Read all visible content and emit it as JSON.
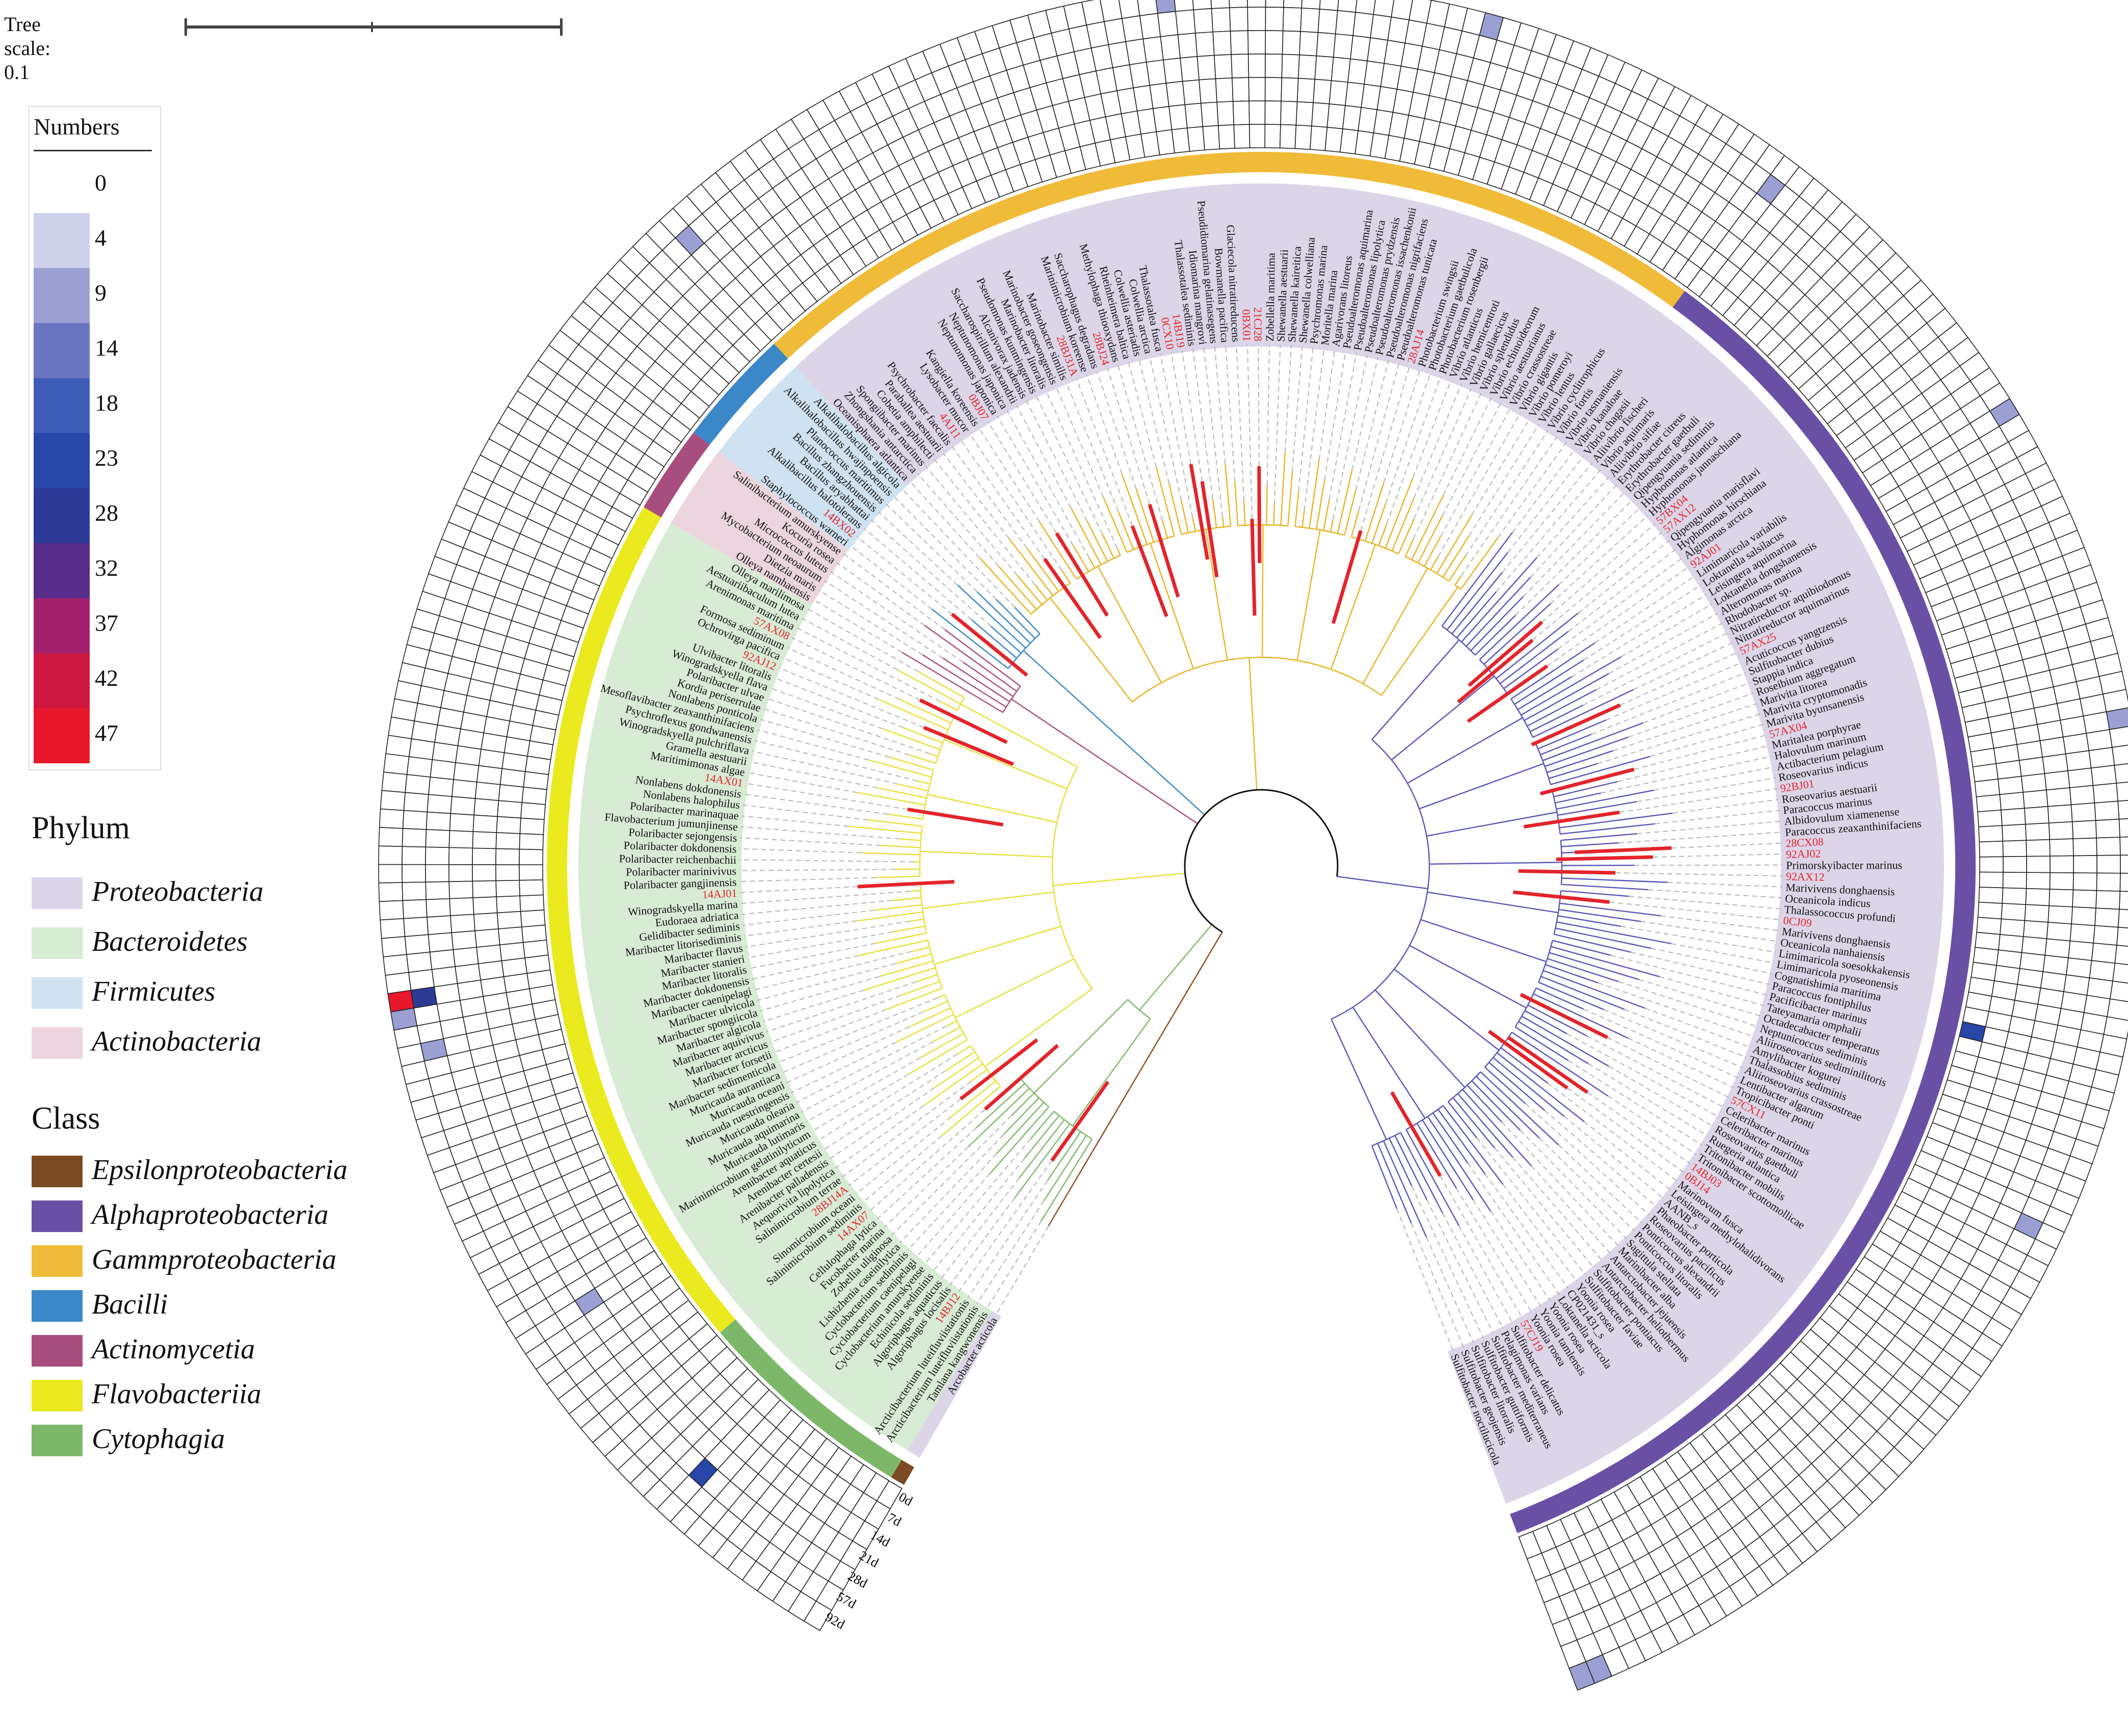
{
  "scale": {
    "label": "Tree scale: 0.1",
    "value": 0.1
  },
  "numbers_legend": {
    "title": "Numbers",
    "items": [
      {
        "label": "0",
        "color": "#ffffff"
      },
      {
        "label": "4",
        "color": "#cfd0ea"
      },
      {
        "label": "9",
        "color": "#9c9fd3"
      },
      {
        "label": "14",
        "color": "#6b76c2"
      },
      {
        "label": "18",
        "color": "#3f5cb6"
      },
      {
        "label": "23",
        "color": "#2746a8"
      },
      {
        "label": "28",
        "color": "#2d3a96"
      },
      {
        "label": "32",
        "color": "#572c8c"
      },
      {
        "label": "37",
        "color": "#a21f6c"
      },
      {
        "label": "42",
        "color": "#cc1840"
      },
      {
        "label": "47",
        "color": "#e8182a"
      }
    ]
  },
  "phylum_legend": {
    "title": "Phylum",
    "items": [
      {
        "label": "Proteobacteria",
        "color": "#dcd5e8"
      },
      {
        "label": "Bacteroidetes",
        "color": "#d8ebd5"
      },
      {
        "label": "Firmicutes",
        "color": "#cfe2f1"
      },
      {
        "label": "Actinobacteria",
        "color": "#ecd5de"
      }
    ]
  },
  "class_legend": {
    "title": "Class",
    "items": [
      {
        "label": "Epsilonproteobacteria",
        "color": "#7b4a22"
      },
      {
        "label": "Alphaproteobacteria",
        "color": "#6a50a4"
      },
      {
        "label": "Gammproteobacteria",
        "color": "#f0bb38"
      },
      {
        "label": "Bacilli",
        "color": "#3b87c8"
      },
      {
        "label": "Actinomycetia",
        "color": "#a84e7e"
      },
      {
        "label": "Flavobacteriia",
        "color": "#eaea1f"
      },
      {
        "label": "Cytophagia",
        "color": "#7db86a"
      }
    ]
  },
  "ring_labels": [
    "92d",
    "57d",
    "28d",
    "21d",
    "14d",
    "7d",
    "0d"
  ],
  "groups": [
    {
      "class": "Epsilonproteobacteria",
      "phylum": "Proteobacteria",
      "taxa": [
        "Arcobacter acticola"
      ]
    },
    {
      "class": "Cytophagia",
      "phylum": "Bacteroidetes",
      "taxa": [
        "Tamlana kangwonensis",
        "Arcticibacterium luteifluviistationis",
        "Arcticibacterium luteifluviistationis",
        "14BJ12",
        "Algoriphagus locisalis",
        "Algoriphagus aquaticus",
        "Echinicola sediminis",
        "Cyclobacterium amurskyense",
        "Cyclobacterium caenipelagi",
        "Cyclobacterium sediminis",
        "Lishizhenia caseinilytica",
        "Zobellia uliginosa",
        "Fucobacter marina",
        "Cellulophaga lytica",
        "14AX07"
      ]
    },
    {
      "class": "Flavobacteriia",
      "phylum": "Bacteroidetes",
      "taxa": [
        "Salinimicrobium sediminis",
        "Sinomicrobium oceani",
        "28BJ14A",
        "Salinimicrobium terrae",
        "Aequorivita lipolytica",
        "Arenibacter palladensis",
        "Arenibacter certesii",
        "Arenibacter aquaticus",
        "Marinimicrobium gelatinilyticum",
        "Muricauda lutimaris",
        "Muricauda aquimarina",
        "Muricauda olearia",
        "Muricauda ruestringensis",
        "Muricauda oceani",
        "Muricauda aurantiaca",
        "Maribacter sedimenticola",
        "Maribacter forsetii",
        "Maribacter arcticus",
        "Maribacter aquivivus",
        "Maribacter algicola",
        "Maribacter spongiicola",
        "Maribacter ulvicola",
        "Maribacter caenipelagi",
        "Maribacter dokdonensis",
        "Maribacter litoralis",
        "Maribacter stanieri",
        "Maribacter flavus",
        "Maribacter litorisediminis",
        "Gelidibacter sediminis",
        "Eudoraea adriatica",
        "Winogradskyella marina",
        "14AJ01",
        "Polaribacter gangjinensis",
        "Polaribacter marinivivus",
        "Polaribacter reichenbachii",
        "Polaribacter dokdonensis",
        "Polaribacter sejongensis",
        "Flavobacterium jumunjinense",
        "Polaribacter marinaquae",
        "Nonlabens halophilus",
        "Nonlabens dokdonensis",
        "14AX01",
        "Maritimimonas algae",
        "Gramella aestuarii",
        "Winogradskyella pulchriflava",
        "Psychroflexus gondwanensis",
        "Mesoflavibacter zeaxanthinifaciens",
        "Nonlabens ponticola",
        "Kordia periserrulae",
        "Polaribacter ulvae",
        "Winogradskyella flava",
        "Ulvibacter litoralis",
        "92AJ12",
        "Ochrovirga pacifica",
        "Formosa sediminum",
        "57AX08",
        "Arenimonas maritima",
        "Aestuariibaculum lutea",
        "Olleya marilimosa"
      ]
    },
    {
      "class": "Actinomycetia",
      "phylum": "Actinobacteria",
      "taxa": [
        "Olleya namhaensis",
        "Dietzia maris",
        "Mycobacterium neoaurum",
        "Micrococcus luteus",
        "Kocuria rosea",
        "Salinibacterium amurskyense"
      ]
    },
    {
      "class": "Bacilli",
      "phylum": "Firmicutes",
      "taxa": [
        "Staphylococcus warneri",
        "14BX02",
        "Alkalibacillus halotolerans",
        "Bacillus aryabhattai",
        "Bacillus zhangzhouensis",
        "Planococcus maritimus",
        "Alkalihalobacillus hwajinpoensis",
        "Alkalihalobacillus algicola"
      ]
    },
    {
      "class": "Gammproteobacteria",
      "phylum": "Proteobacteria",
      "taxa": [
        "Oceanisphaera atlantica",
        "Zhongshania antarctica",
        "Spongiibacter marinus",
        "Cobetia amphilecti",
        "Paraballea aestuarii",
        "Psychrobacter faecalis",
        "4AJ11",
        "Lysobacter mucor",
        "Kangiella koreensis",
        "0BJ07",
        "Neptunomonas japonica",
        "Neptunomonas japonica",
        "Saccharospirillum alexandrii",
        "Alcanivorax jadensis",
        "Pseudomonas kunmingensis",
        "Marinobacter litoralis",
        "Marinobacter goseongensis",
        "Marinobacter similis",
        "28BJ31A",
        "Marinimicrobium koreense",
        "Saccharophagus degradans",
        "28BJ24",
        "Methylophaga thiooxydans",
        "Rheinheimera baltica",
        "Colwellia asteriadis",
        "Colwellia arctica",
        "Thalassotalea fusca",
        "0CX10",
        "14BJ19",
        "Thalassotalea sediminis",
        "Idiomarina mangrovi",
        "Pseudidiomarina gelatinasegens",
        "Bowmanella pacifica",
        "Glaciecola nitratireducens",
        "0BX01",
        "21CJ28",
        "Zobellella maritima",
        "Shewanella aestuarii",
        "Shewanella kaireitica",
        "Shewanella colwelliana",
        "Psychromonas marina",
        "Moritella marina",
        "Agarivorans litoreus",
        "Pseudoalteromonas aquimarina",
        "Pseudoalteromonas lipolytica",
        "Pseudoalteromonas prydzensis",
        "Pseudoalteromonas issachenkonii",
        "Pseudoalteromonas nigrifaciens",
        "Pseudoalteromonas tunicata",
        "28AJ14",
        "Photobacterium swingsii",
        "Photobacterium gaetbulicola",
        "Photobacterium rosenbergii",
        "Vibrio atlanticus",
        "Vibrio hemicentroti",
        "Vibrio gallaecicus",
        "Vibrio splendidus",
        "Vibrio echinoideorum",
        "Vibrio aestuarianus",
        "Vibrio crassostreae",
        "Vibrio gigantis",
        "Vibrio pomeroyi",
        "Vibrio lentus",
        "Vibrio cyclitrophicus",
        "Vibrio fortis",
        "Vibrio tasmaniensis"
      ]
    },
    {
      "class": "Alphaproteobacteria",
      "phylum": "Proteobacteria",
      "taxa": [
        "Vibrio kanaloae",
        "Vibrio chagasii",
        "Aliivibrio fischeri",
        "Vibrio aquimaris",
        "Aliivibrio sifiae",
        "Erythrobacter citreus",
        "Erythrobacter gaetbuli",
        "Qipengyuania sediminis",
        "Hyphomonas atlantica",
        "Hyphomonas jannaschiana",
        "57BX04",
        "57AX12",
        "Qipengyuania marisflavi",
        "Hyphomonas hirschiana",
        "Algimonas arctica",
        "92AJ01",
        "Limimaricola variabilis",
        "Loktanella salsilacus",
        "Leisingera aquimarina",
        "Loktanella dongshanensis",
        "Alteromonas marina",
        "Rhodobacter sp.",
        "Nitratireductor aquibiodomus",
        "Nitratireductor aquimarinus",
        "57AX25",
        "Acuticoccus yangtzensis",
        "Sulfitobacter dubius",
        "Stappia indica",
        "Roseibium aggregatum",
        "Marivita litorea",
        "Marivita cryptomonadis",
        "Marivita byunsanensis",
        "57AX04",
        "Maritalea porphyrae",
        "Halovulum marinum",
        "Actibacterium pelagium",
        "Roseovarius indicus",
        "92BJ01",
        "Roseovarius aestuarii",
        "Paracoccus marinus",
        "Albidovulum xiamenense",
        "Paracoccus zeaxanthinifaciens",
        "28CX08",
        "92AJ02",
        "Primorskyibacter marinus",
        "92AX12",
        "Marivivens donghaensis",
        "Oceanicola indicus",
        "Thalassococcus profundi",
        "0CJ09",
        "Marivivens donghaensis",
        "Oceanicola nanhaiensis",
        "Limimaricola soesokkakensis",
        "Limimaricola pyoseonensis",
        "Cognatishimia maritima",
        "Paracoccus fontiphilus",
        "Pacificibacter marinus",
        "Tateyamaria omphalii",
        "Octadecabacter temperatus",
        "Neptunicoccus sediminis",
        "Aliiroseovarius sediminilitoris",
        "Amylibacter kogurei",
        "Thalassobius sediminis",
        "Aliiroseovarius crassostreae",
        "Lentibacter algarum",
        "Tropicibacter ponti",
        "57CX11",
        "Celeribacter marinus",
        "Celeribacter marinus",
        "Roseovarius gaetbuli",
        "Ruegeria atlantica",
        "Tritonibacter mobilis",
        "Tritonibacter scottomollicae",
        "14BJ03",
        "0BJ14",
        "Marinovum fusca",
        "Leisingera methylohalidivorans",
        "AANB_s",
        "Phaeobacter porticola",
        "Roseovarius pacificus",
        "Ponticoccus alexandrii",
        "Ponticoccus litoralis",
        "Sagittula stellata",
        "Marinibacter alba",
        "Antarctobacter jejuensis",
        "Antarctobacter heliothermus",
        "Sulfitobacter pontiacus",
        "Sulfitobacter faviae",
        "Yoonia rosea",
        "CP021431_s",
        "Loktanella acticola",
        "Yoonia rosea",
        "Yoonia tamlensis",
        "Yoonia rosea",
        "57CJ19",
        "Sulfitobacter delicatus",
        "Pelagimonas varians",
        "Sulfitobacter mediterraneus",
        "Sulfitobacter guttiformis",
        "Sulfitobacter litoralis",
        "Sulfitobacter geojensis",
        "Sulfitobacter noctilucicola"
      ]
    }
  ],
  "heatmap_highlights": [
    {
      "ring": "92d",
      "taxon": "Maribacter flavus",
      "value": 47
    },
    {
      "ring": "57d",
      "taxon": "Maribacter flavus",
      "value": 28
    },
    {
      "ring": "57d",
      "taxon": "Maribacter dokdonensis",
      "value": 9
    },
    {
      "ring": "92d",
      "taxon": "Maribacter stanieri",
      "value": 9
    },
    {
      "ring": "28d",
      "taxon": "Cyclobacterium sediminis",
      "value": 23
    },
    {
      "ring": "21d",
      "taxon": "Arenibacter certesii",
      "value": 9
    },
    {
      "ring": "92d",
      "taxon": "Sulfitobacter noctilucicola",
      "value": 9
    },
    {
      "ring": "92d",
      "taxon": "Sulfitobacter geojensis",
      "value": 9
    },
    {
      "ring": "57d",
      "taxon": "Tropicibacter ponti",
      "value": 9
    },
    {
      "ring": "0d",
      "taxon": "Paracoccus fontiphilus",
      "value": 23
    },
    {
      "ring": "92d",
      "taxon": "Roseovarius indicus",
      "value": 9
    },
    {
      "ring": "92d",
      "taxon": "Leisingera aquimarina",
      "value": 9
    },
    {
      "ring": "57d",
      "taxon": "Vibrio kanaloae",
      "value": 9
    },
    {
      "ring": "92d",
      "taxon": "Pseudoalteromonas tunicata",
      "value": 9
    },
    {
      "ring": "57d",
      "taxon": "Oceanisphaera atlantica",
      "value": 9
    },
    {
      "ring": "92d",
      "taxon": "Idiomarina mangrovi",
      "value": 9
    }
  ]
}
